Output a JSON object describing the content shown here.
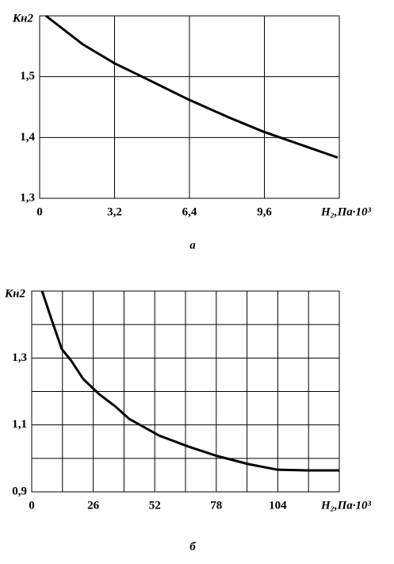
{
  "chart_data": [
    {
      "type": "line",
      "y_label": "Кн2",
      "x_label": "H₂,Па·10³",
      "caption": "а",
      "x": [
        0.27,
        1.85,
        3.2,
        4.38,
        6.33,
        8.08,
        9.53,
        10.27,
        12.73
      ],
      "values": [
        1.6,
        1.553,
        1.522,
        1.5,
        1.463,
        1.433,
        1.41,
        1.4,
        1.367
      ],
      "color": "#000000",
      "xlim": [
        0,
        12.8
      ],
      "xticks": [
        0,
        {
          "value": 3.2,
          "label": "3,2"
        },
        {
          "value": 6.4,
          "label": "6,4"
        },
        {
          "value": 9.6,
          "label": "9,6"
        }
      ],
      "ylim": [
        1.3,
        1.6
      ],
      "yticks": [
        {
          "value": 1.3,
          "label": "1,3"
        },
        {
          "value": 1.4,
          "label": "1,4"
        },
        {
          "value": 1.5,
          "label": "1,5"
        }
      ],
      "grid": true
    },
    {
      "type": "line",
      "y_label": "Кн2",
      "x_label": "H₂,Па·10³",
      "caption": "б",
      "x": [
        4.4,
        8.4,
        12.7,
        16.8,
        21.8,
        28.5,
        35.2,
        41.2,
        53.9,
        66.3,
        78.4,
        91.5,
        103.9,
        116.6,
        130
      ],
      "values": [
        1.5,
        1.415,
        1.327,
        1.291,
        1.237,
        1.192,
        1.156,
        1.118,
        1.068,
        1.035,
        1.007,
        0.983,
        0.966,
        0.964,
        0.964
      ],
      "color": "#000000",
      "xlim": [
        0,
        130
      ],
      "xticks": [
        0,
        26,
        52,
        78,
        104
      ],
      "xminor": [
        13,
        39,
        65,
        91,
        117
      ],
      "ylim": [
        0.9,
        1.5
      ],
      "yticks": [
        {
          "value": 0.9,
          "label": "0,9"
        },
        {
          "value": 1.1,
          "label": "1,1"
        },
        {
          "value": 1.3,
          "label": "1,3"
        }
      ],
      "yminor": [
        1.0,
        1.2,
        1.4
      ],
      "grid": true
    }
  ]
}
